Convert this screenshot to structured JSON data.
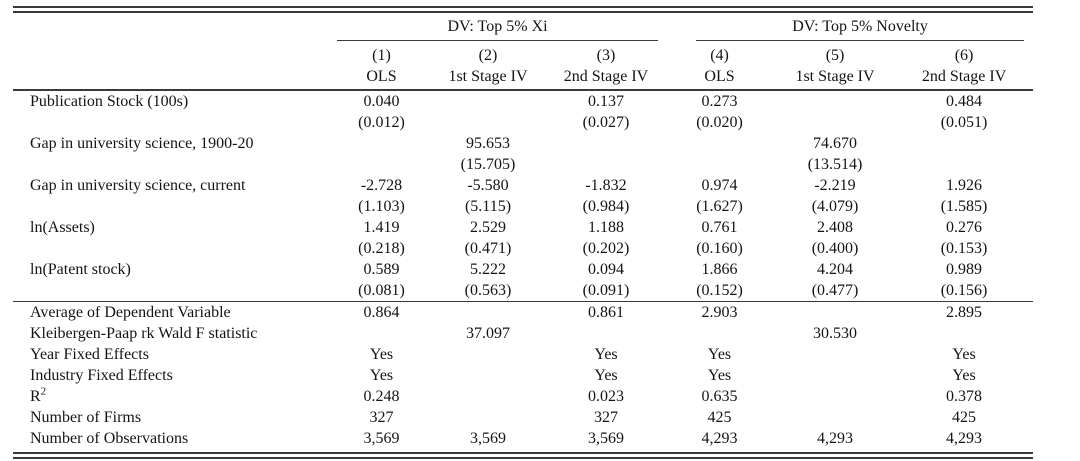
{
  "colors": {
    "text": "#141414",
    "rule": "#3a3a3a",
    "background": "#ffffff"
  },
  "table": {
    "groups": [
      {
        "label": "DV: Top 5% Xi",
        "span": 3
      },
      {
        "label": "DV: Top 5% Novelty",
        "span": 3
      }
    ],
    "columns": [
      {
        "number": "(1)",
        "estimator": "OLS"
      },
      {
        "number": "(2)",
        "estimator": "1st Stage IV"
      },
      {
        "number": "(3)",
        "estimator": "2nd Stage IV"
      },
      {
        "number": "(4)",
        "estimator": "OLS"
      },
      {
        "number": "(5)",
        "estimator": "1st Stage IV"
      },
      {
        "number": "(6)",
        "estimator": "2nd Stage IV"
      }
    ],
    "coefficient_rows": [
      {
        "label": "Publication Stock (100s)",
        "estimates": [
          "0.040",
          "",
          "0.137",
          "0.273",
          "",
          "0.484"
        ],
        "std_errors": [
          "(0.012)",
          "",
          "(0.027)",
          "(0.020)",
          "",
          "(0.051)"
        ]
      },
      {
        "label": "Gap in university science, 1900-20",
        "estimates": [
          "",
          "95.653",
          "",
          "",
          "74.670",
          ""
        ],
        "std_errors": [
          "",
          "(15.705)",
          "",
          "",
          "(13.514)",
          ""
        ]
      },
      {
        "label": "Gap in university science, current",
        "estimates": [
          "-2.728",
          "-5.580",
          "-1.832",
          "0.974",
          "-2.219",
          "1.926"
        ],
        "std_errors": [
          "(1.103)",
          "(5.115)",
          "(0.984)",
          "(1.627)",
          "(4.079)",
          "(1.585)"
        ]
      },
      {
        "label": "ln(Assets)",
        "estimates": [
          "1.419",
          "2.529",
          "1.188",
          "0.761",
          "2.408",
          "0.276"
        ],
        "std_errors": [
          "(0.218)",
          "(0.471)",
          "(0.202)",
          "(0.160)",
          "(0.400)",
          "(0.153)"
        ]
      },
      {
        "label": "ln(Patent stock)",
        "estimates": [
          "0.589",
          "5.222",
          "0.094",
          "1.866",
          "4.204",
          "0.989"
        ],
        "std_errors": [
          "(0.081)",
          "(0.563)",
          "(0.091)",
          "(0.152)",
          "(0.477)",
          "(0.156)"
        ]
      }
    ],
    "stat_rows": [
      {
        "label": "Average of Dependent Variable",
        "values": [
          "0.864",
          "",
          "0.861",
          "2.903",
          "",
          "2.895"
        ]
      },
      {
        "label": "Kleibergen-Paap rk Wald F statistic",
        "values": [
          "",
          "37.097",
          "",
          "",
          "30.530",
          ""
        ]
      },
      {
        "label": "Year Fixed Effects",
        "values": [
          "Yes",
          "",
          "Yes",
          "Yes",
          "",
          "Yes"
        ]
      },
      {
        "label": "Industry Fixed Effects",
        "values": [
          "Yes",
          "",
          "Yes",
          "Yes",
          "",
          "Yes"
        ]
      },
      {
        "label": "R",
        "superscript": "2",
        "values": [
          "0.248",
          "",
          "0.023",
          "0.635",
          "",
          "0.378"
        ]
      },
      {
        "label": "Number of Firms",
        "values": [
          "327",
          "",
          "327",
          "425",
          "",
          "425"
        ]
      },
      {
        "label": "Number of Observations",
        "values": [
          "3,569",
          "3,569",
          "3,569",
          "4,293",
          "4,293",
          "4,293"
        ]
      }
    ]
  }
}
